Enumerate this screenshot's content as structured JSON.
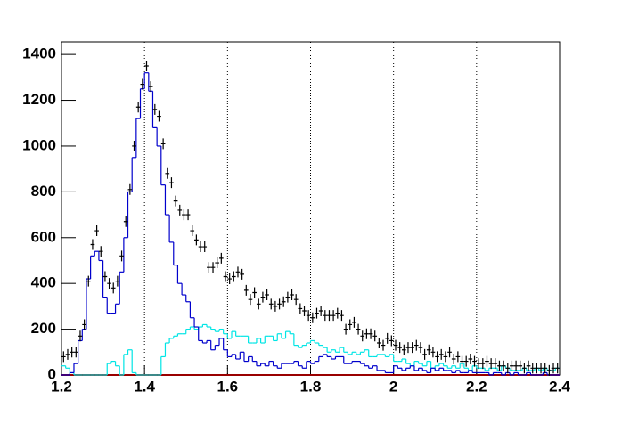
{
  "chart_data": {
    "type": "histogram",
    "bins": [
      1.2,
      1.21,
      1.22,
      1.23,
      1.24,
      1.25,
      1.26,
      1.27,
      1.28,
      1.29,
      1.3,
      1.31,
      1.32,
      1.33,
      1.34,
      1.35,
      1.36,
      1.37,
      1.38,
      1.39,
      1.4,
      1.41,
      1.42,
      1.43,
      1.44,
      1.45,
      1.46,
      1.47,
      1.48,
      1.49,
      1.5,
      1.51,
      1.52,
      1.53,
      1.54,
      1.55,
      1.56,
      1.57,
      1.58,
      1.59,
      1.6,
      1.61,
      1.62,
      1.63,
      1.64,
      1.65,
      1.66,
      1.67,
      1.68,
      1.69,
      1.7,
      1.71,
      1.72,
      1.73,
      1.74,
      1.75,
      1.76,
      1.77,
      1.78,
      1.79,
      1.8,
      1.81,
      1.82,
      1.83,
      1.84,
      1.85,
      1.86,
      1.87,
      1.88,
      1.89,
      1.9,
      1.91,
      1.92,
      1.93,
      1.94,
      1.95,
      1.96,
      1.97,
      1.98,
      1.99,
      2,
      2.01,
      2.02,
      2.03,
      2.04,
      2.05,
      2.06,
      2.07,
      2.08,
      2.09,
      2.1,
      2.11,
      2.12,
      2.13,
      2.14,
      2.15,
      2.16,
      2.17,
      2.18,
      2.19,
      2.2,
      2.21,
      2.22,
      2.23,
      2.24,
      2.25,
      2.26,
      2.27,
      2.28,
      2.29,
      2.3,
      2.31,
      2.32,
      2.33,
      2.34,
      2.35,
      2.36,
      2.37,
      2.38,
      2.39,
      2.4
    ],
    "series": [
      {
        "color": "#00e5e5",
        "style": "step",
        "values": [
          40,
          30,
          10,
          0,
          0,
          0,
          0,
          0,
          0,
          0,
          0,
          50,
          60,
          40,
          0,
          90,
          110,
          10,
          0,
          0,
          0,
          0,
          0,
          0,
          80,
          140,
          160,
          170,
          180,
          180,
          200,
          210,
          200,
          210,
          220,
          210,
          200,
          190,
          200,
          180,
          160,
          190,
          170,
          170,
          170,
          140,
          140,
          160,
          140,
          170,
          170,
          150,
          180,
          160,
          190,
          180,
          130,
          120,
          130,
          140,
          150,
          140,
          130,
          120,
          100,
          110,
          100,
          120,
          100,
          90,
          100,
          90,
          100,
          110,
          80,
          80,
          90,
          90,
          80,
          90,
          60,
          60,
          70,
          50,
          40,
          60,
          50,
          40,
          60,
          30,
          40,
          50,
          40,
          30,
          40,
          30,
          50,
          30,
          20,
          40,
          30,
          30,
          20,
          30,
          30,
          20,
          40,
          30,
          20,
          20,
          20,
          30,
          20,
          20,
          30,
          20,
          30,
          20,
          20,
          30
        ]
      },
      {
        "color": "#0000cc",
        "style": "step",
        "values": [
          0,
          0,
          10,
          50,
          150,
          200,
          420,
          520,
          540,
          500,
          340,
          270,
          270,
          310,
          450,
          600,
          800,
          950,
          1120,
          1250,
          1320,
          1240,
          1080,
          1000,
          830,
          700,
          580,
          480,
          400,
          350,
          320,
          250,
          210,
          150,
          140,
          150,
          110,
          130,
          160,
          110,
          80,
          90,
          70,
          100,
          60,
          80,
          60,
          40,
          50,
          40,
          60,
          40,
          30,
          50,
          50,
          50,
          60,
          40,
          30,
          60,
          50,
          60,
          80,
          90,
          80,
          70,
          80,
          80,
          50,
          50,
          60,
          60,
          50,
          40,
          30,
          40,
          20,
          20,
          10,
          10,
          40,
          30,
          20,
          30,
          40,
          20,
          30,
          20,
          10,
          30,
          20,
          30,
          20,
          20,
          10,
          20,
          10,
          10,
          20,
          10,
          10,
          10,
          10,
          0,
          10,
          10,
          0,
          10,
          0,
          10,
          0,
          0,
          10,
          0,
          0,
          0,
          10,
          0,
          0,
          0
        ]
      },
      {
        "color": "#000000",
        "style": "points",
        "values": [
          80,
          90,
          100,
          100,
          170,
          220,
          410,
          570,
          630,
          540,
          430,
          400,
          380,
          410,
          520,
          670,
          810,
          1000,
          1170,
          1270,
          1350,
          1260,
          1160,
          1130,
          1010,
          880,
          840,
          760,
          720,
          700,
          700,
          630,
          590,
          560,
          560,
          470,
          470,
          490,
          510,
          430,
          420,
          430,
          450,
          440,
          370,
          330,
          360,
          310,
          340,
          350,
          310,
          300,
          310,
          320,
          340,
          350,
          330,
          290,
          280,
          260,
          250,
          270,
          280,
          260,
          260,
          260,
          270,
          260,
          200,
          220,
          230,
          200,
          170,
          180,
          180,
          170,
          140,
          130,
          160,
          150,
          130,
          120,
          110,
          120,
          120,
          130,
          120,
          90,
          110,
          100,
          80,
          90,
          80,
          100,
          70,
          80,
          60,
          60,
          70,
          60,
          50,
          50,
          60,
          50,
          50,
          40,
          40,
          30,
          40,
          40,
          40,
          30,
          40,
          30,
          30,
          30,
          30,
          20,
          30,
          30
        ]
      }
    ],
    "xlim": [
      1.2,
      2.4
    ],
    "xticks": [
      1.2,
      1.4,
      1.6,
      1.8,
      2,
      2.2,
      2.4
    ],
    "ylim": [
      0,
      1455
    ],
    "yticks": [
      0,
      200,
      400,
      600,
      800,
      1000,
      1200,
      1400
    ],
    "grid": "x"
  }
}
